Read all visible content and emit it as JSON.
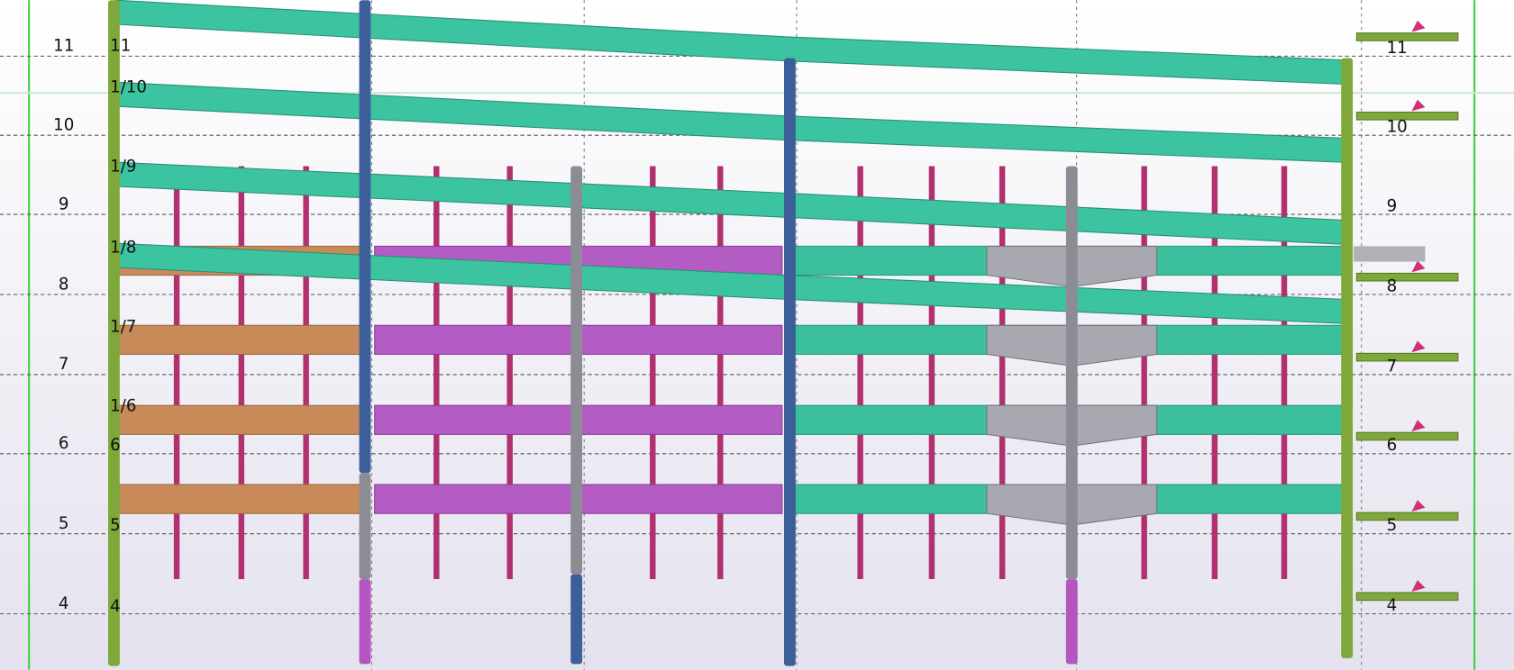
{
  "grid_labels_left": [
    "11",
    "10",
    "9",
    "8",
    "7",
    "6",
    "5",
    "4"
  ],
  "column_labels": [
    "11",
    "1/10",
    "1/9",
    "1/8",
    "1/7",
    "1/6",
    "6",
    "5",
    "4"
  ],
  "grid_labels_right": [
    "11",
    "10",
    "9",
    "8",
    "7",
    "6",
    "5",
    "4"
  ]
}
